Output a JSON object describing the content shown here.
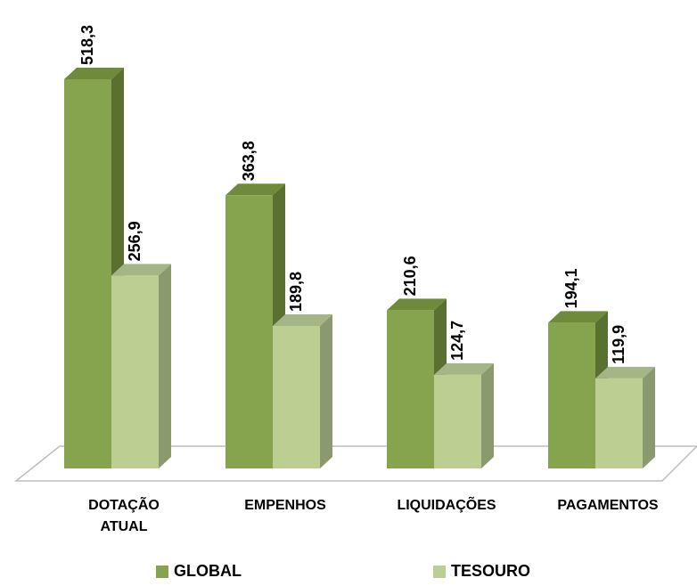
{
  "chart_data": {
    "type": "bar",
    "style": "3d-clustered-column",
    "categories": [
      [
        "DOTAÇÃO",
        "ATUAL"
      ],
      [
        "EMPENHOS"
      ],
      [
        "LIQUIDAÇÕES"
      ],
      [
        "PAGAMENTOS"
      ]
    ],
    "series": [
      {
        "name": "GLOBAL",
        "values": [
          518.3,
          363.8,
          210.6,
          194.1
        ],
        "labels": [
          "518,3",
          "363,8",
          "210,6",
          "194,1"
        ],
        "color": "#86A34D"
      },
      {
        "name": "TESOURO",
        "values": [
          256.9,
          189.8,
          124.7,
          119.9
        ],
        "labels": [
          "256,9",
          "189,8",
          "124,7",
          "119,9"
        ],
        "color": "#BBCF93"
      }
    ],
    "title": "",
    "xlabel": "",
    "ylabel": "",
    "ylim": [
      0,
      518.3
    ],
    "grid": false,
    "legend_position": "bottom"
  }
}
